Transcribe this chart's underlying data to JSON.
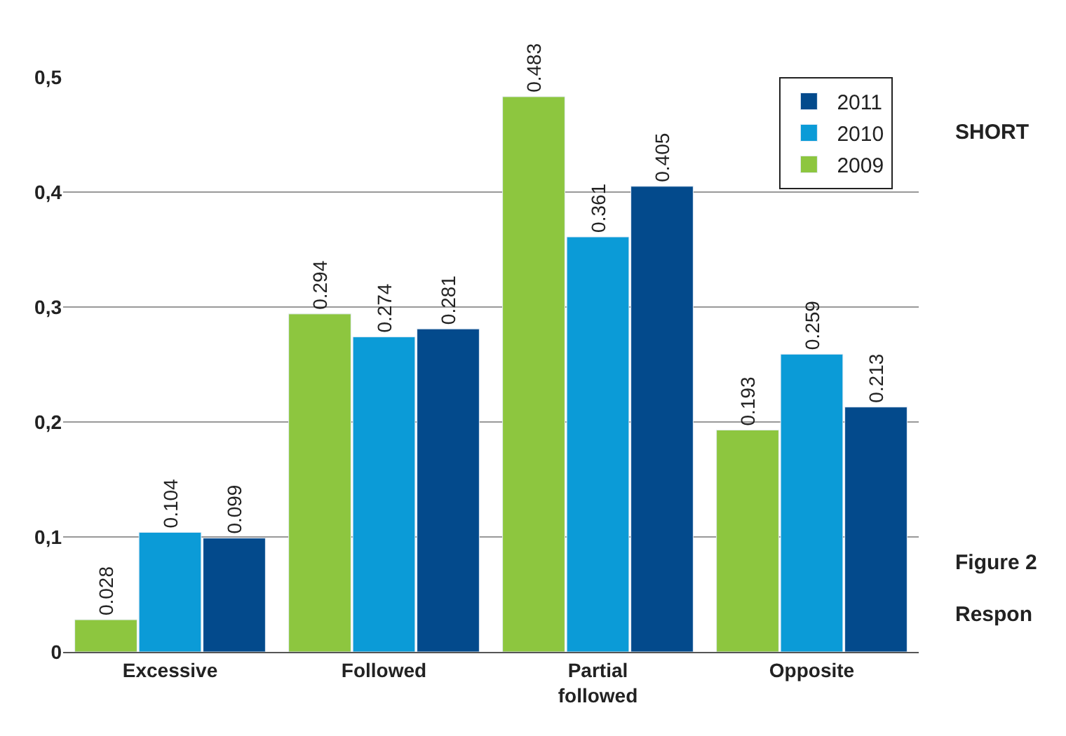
{
  "chart_data": {
    "type": "bar",
    "categories": [
      "Excessive",
      "Followed",
      "Partial followed",
      "Opposite"
    ],
    "series": [
      {
        "name": "2009",
        "color": "#8dc63f",
        "values": [
          0.028,
          0.294,
          0.483,
          0.193
        ]
      },
      {
        "name": "2010",
        "color": "#0b9bd7",
        "values": [
          0.104,
          0.274,
          0.361,
          0.259
        ]
      },
      {
        "name": "2011",
        "color": "#034a8c",
        "values": [
          0.099,
          0.281,
          0.405,
          0.213
        ]
      }
    ],
    "ylim": [
      0,
      0.5
    ],
    "yticks": [
      {
        "value": 0,
        "label": "0"
      },
      {
        "value": 0.1,
        "label": "0,1"
      },
      {
        "value": 0.2,
        "label": "0,2"
      },
      {
        "value": 0.3,
        "label": "0,3"
      },
      {
        "value": 0.4,
        "label": "0,4"
      },
      {
        "value": 0.5,
        "label": "0,5"
      }
    ],
    "grid": "y",
    "legend": "top right",
    "data_labels": true,
    "annotations": [
      "SHORT",
      "Figure 2",
      "Respon"
    ]
  }
}
